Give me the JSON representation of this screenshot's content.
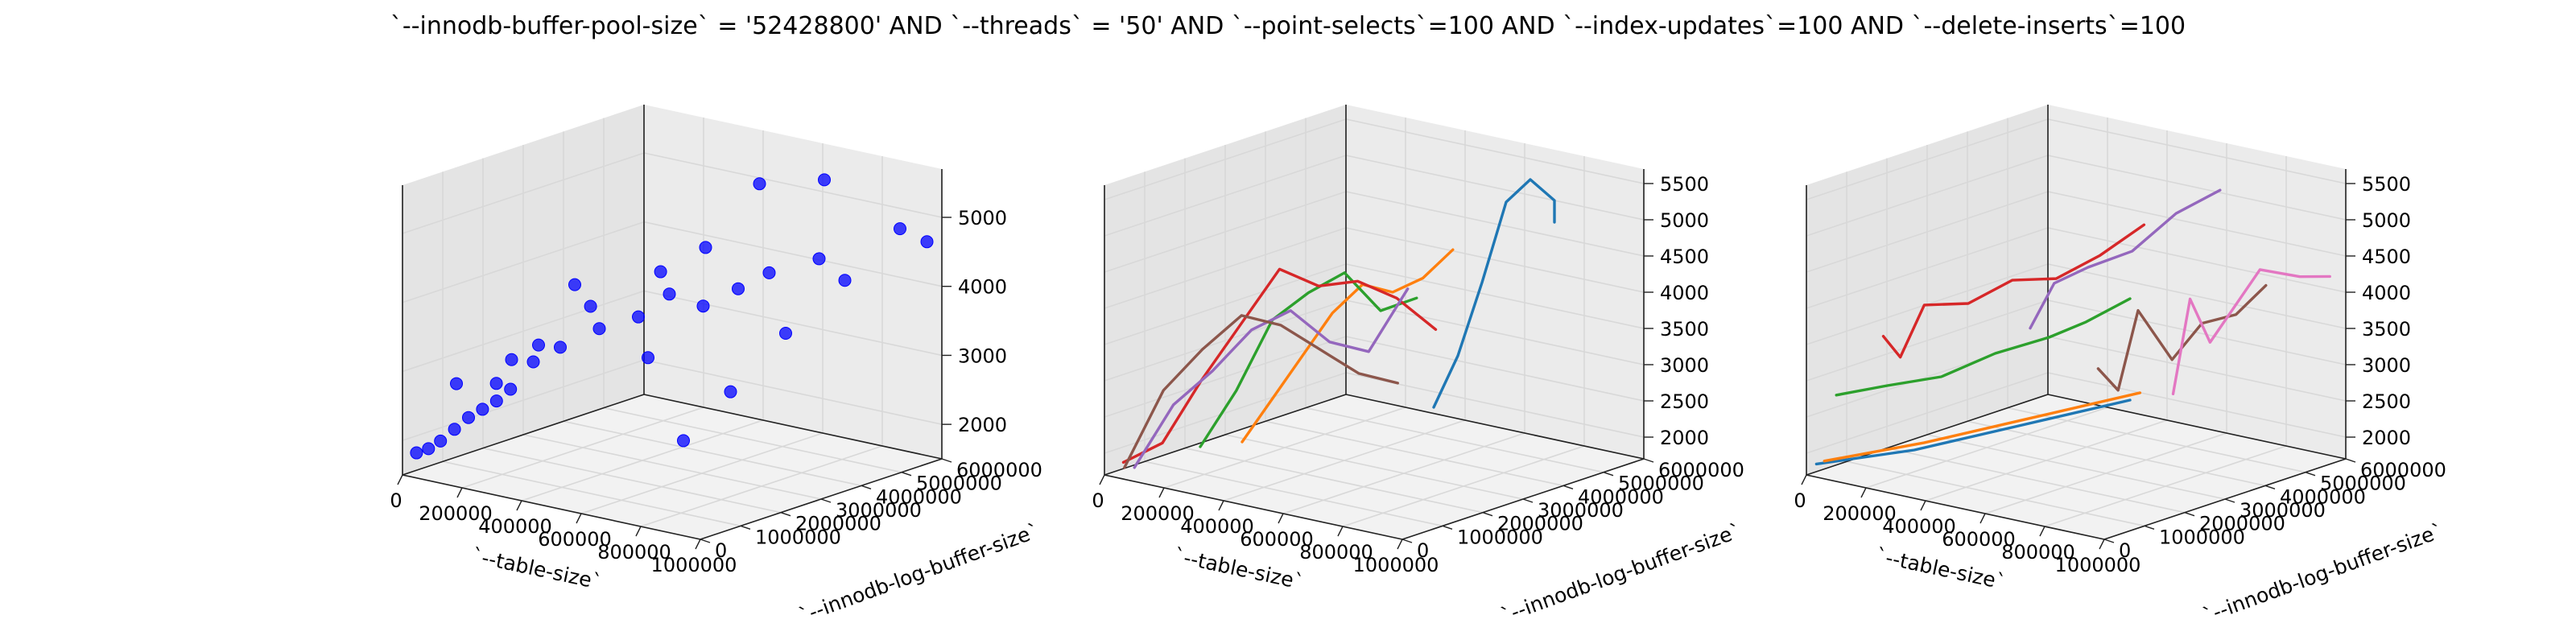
{
  "figure": {
    "title": "`--innodb-buffer-pool-size` = '52428800' AND `--threads` = '50'  AND `--point-selects`=100 AND `--index-updates`=100 AND `--delete-inserts`=100"
  },
  "chart_data": [
    {
      "type": "scatter",
      "xlabel": "`--table-size`",
      "ylabel": "`--innodb-log-buffer-size`",
      "zlabel": "",
      "xlim": [
        0,
        1000000
      ],
      "ylim": [
        0,
        6000000
      ],
      "zlim": [
        1500,
        5700
      ],
      "xticks": [
        "0",
        "200000",
        "400000",
        "600000",
        "800000",
        "1000000"
      ],
      "yticks": [
        "0",
        "1000000",
        "2000000",
        "3000000",
        "4000000",
        "5000000",
        "6000000"
      ],
      "zticks": [
        "2000",
        "3000",
        "4000",
        "5000"
      ],
      "marker_color": "#0000ff",
      "points": [
        {
          "x": 20000,
          "y": 200000,
          "z": 1800
        },
        {
          "x": 40000,
          "y": 350000,
          "z": 1850
        },
        {
          "x": 60000,
          "y": 500000,
          "z": 1950
        },
        {
          "x": 80000,
          "y": 700000,
          "z": 2100
        },
        {
          "x": 100000,
          "y": 900000,
          "z": 2250
        },
        {
          "x": 120000,
          "y": 1100000,
          "z": 2350
        },
        {
          "x": 140000,
          "y": 1300000,
          "z": 2450
        },
        {
          "x": 160000,
          "y": 1500000,
          "z": 2600
        },
        {
          "x": 100000,
          "y": 600000,
          "z": 2800
        },
        {
          "x": 180000,
          "y": 1000000,
          "z": 2800
        },
        {
          "x": 150000,
          "y": 1600000,
          "z": 3000
        },
        {
          "x": 200000,
          "y": 1900000,
          "z": 3200
        },
        {
          "x": 250000,
          "y": 1400000,
          "z": 3100
        },
        {
          "x": 300000,
          "y": 1700000,
          "z": 3300
        },
        {
          "x": 350000,
          "y": 2300000,
          "z": 3500
        },
        {
          "x": 200000,
          "y": 2800000,
          "z": 3900
        },
        {
          "x": 280000,
          "y": 2600000,
          "z": 3700
        },
        {
          "x": 400000,
          "y": 2900000,
          "z": 3600
        },
        {
          "x": 450000,
          "y": 3300000,
          "z": 3900
        },
        {
          "x": 380000,
          "y": 3600000,
          "z": 4100
        },
        {
          "x": 500000,
          "y": 2400000,
          "z": 3200
        },
        {
          "x": 550000,
          "y": 3400000,
          "z": 3800
        },
        {
          "x": 600000,
          "y": 3900000,
          "z": 4000
        },
        {
          "x": 650000,
          "y": 4300000,
          "z": 4200
        },
        {
          "x": 450000,
          "y": 4200000,
          "z": 4400
        },
        {
          "x": 700000,
          "y": 1800000,
          "z": 2300
        },
        {
          "x": 750000,
          "y": 2600000,
          "z": 2900
        },
        {
          "x": 800000,
          "y": 3600000,
          "z": 3600
        },
        {
          "x": 750000,
          "y": 4800000,
          "z": 4400
        },
        {
          "x": 850000,
          "y": 4700000,
          "z": 4200
        },
        {
          "x": 550000,
          "y": 4800000,
          "z": 5300
        },
        {
          "x": 700000,
          "y": 5300000,
          "z": 5400
        },
        {
          "x": 900000,
          "y": 5700000,
          "z": 4800
        },
        {
          "x": 950000,
          "y": 6000000,
          "z": 4600
        }
      ]
    },
    {
      "type": "line",
      "xlabel": "`--table-size`",
      "ylabel": "`--innodb-log-buffer-size`",
      "zlabel": "",
      "xlim": [
        0,
        1000000
      ],
      "ylim": [
        0,
        6000000
      ],
      "zlim": [
        1700,
        5700
      ],
      "xticks": [
        "0",
        "200000",
        "400000",
        "600000",
        "800000",
        "1000000"
      ],
      "yticks": [
        "0",
        "1000000",
        "2000000",
        "3000000",
        "4000000",
        "5000000",
        "6000000"
      ],
      "zticks": [
        "2000",
        "2500",
        "3000",
        "3500",
        "4000",
        "4500",
        "5000",
        "5500"
      ],
      "series": [
        {
          "color": "#1f77b4",
          "points": [
            [
              700000,
              3000000,
              2700
            ],
            [
              700000,
              3600000,
              3300
            ],
            [
              700000,
              4200000,
              4200
            ],
            [
              700000,
              4800000,
              5200
            ],
            [
              700000,
              5400000,
              5400
            ],
            [
              700000,
              6000000,
              5000
            ],
            [
              700000,
              6600000,
              4700
            ]
          ]
        },
        {
          "color": "#ff7f0e",
          "points": [
            [
              300000,
              1200000,
              2200
            ],
            [
              320000,
              1800000,
              2700
            ],
            [
              340000,
              2400000,
              3200
            ],
            [
              360000,
              3000000,
              3700
            ],
            [
              380000,
              3600000,
              4000
            ],
            [
              400000,
              4200000,
              3800
            ],
            [
              420000,
              4800000,
              3900
            ],
            [
              440000,
              5400000,
              4200
            ]
          ]
        },
        {
          "color": "#2ca02c",
          "points": [
            [
              200000,
              900000,
              2100
            ],
            [
              240000,
              1500000,
              2800
            ],
            [
              280000,
              2100000,
              3700
            ],
            [
              320000,
              2700000,
              4000
            ],
            [
              360000,
              3300000,
              4200
            ],
            [
              400000,
              3900000,
              3600
            ],
            [
              440000,
              4500000,
              3700
            ]
          ]
        },
        {
          "color": "#d62728",
          "points": [
            [
              50000,
              100000,
              1900
            ],
            [
              100000,
              700000,
              2100
            ],
            [
              150000,
              1300000,
              2900
            ],
            [
              200000,
              1900000,
              3600
            ],
            [
              250000,
              2500000,
              4300
            ],
            [
              300000,
              3100000,
              4000
            ],
            [
              350000,
              3700000,
              4000
            ],
            [
              400000,
              4300000,
              3700
            ],
            [
              450000,
              4900000,
              3200
            ]
          ]
        },
        {
          "color": "#9467bd",
          "points": [
            [
              60000,
              300000,
              1800
            ],
            [
              110000,
              900000,
              2600
            ],
            [
              160000,
              1500000,
              3000
            ],
            [
              210000,
              2100000,
              3500
            ],
            [
              260000,
              2700000,
              3700
            ],
            [
              310000,
              3300000,
              3200
            ],
            [
              360000,
              3900000,
              3000
            ],
            [
              410000,
              4500000,
              3800
            ]
          ]
        },
        {
          "color": "#8c564b",
          "points": [
            [
              40000,
              200000,
              1800
            ],
            [
              90000,
              800000,
              2800
            ],
            [
              140000,
              1400000,
              3300
            ],
            [
              190000,
              2000000,
              3700
            ],
            [
              240000,
              2600000,
              3500
            ],
            [
              290000,
              3200000,
              3100
            ],
            [
              340000,
              3800000,
              2700
            ],
            [
              390000,
              4400000,
              2500
            ]
          ]
        }
      ]
    },
    {
      "type": "line",
      "xlabel": "`--table-size`",
      "ylabel": "`--innodb-log-buffer-size`",
      "zlabel": "",
      "xlim": [
        0,
        1000000
      ],
      "ylim": [
        0,
        6000000
      ],
      "zlim": [
        1700,
        5700
      ],
      "xticks": [
        "0",
        "200000",
        "400000",
        "600000",
        "800000",
        "1000000"
      ],
      "yticks": [
        "0",
        "1000000",
        "2000000",
        "3000000",
        "4000000",
        "5000000",
        "6000000"
      ],
      "zticks": [
        "2000",
        "2500",
        "3000",
        "3500",
        "4000",
        "4500",
        "5000",
        "5500"
      ],
      "series": [
        {
          "color": "#1f77b4",
          "points": [
            [
              20000,
              100000,
              1850
            ],
            [
              200000,
              1200000,
              2000
            ],
            [
              400000,
              2400000,
              2300
            ],
            [
              600000,
              3600000,
              2600
            ]
          ]
        },
        {
          "color": "#ff7f0e",
          "points": [
            [
              40000,
              150000,
              1900
            ],
            [
              220000,
              1300000,
              2100
            ],
            [
              420000,
              2500000,
              2400
            ],
            [
              620000,
              3700000,
              2700
            ]
          ]
        },
        {
          "color": "#2ca02c",
          "points": [
            [
              60000,
              300000,
              2800
            ],
            [
              150000,
              900000,
              2900
            ],
            [
              250000,
              1500000,
              3000
            ],
            [
              350000,
              2100000,
              3300
            ],
            [
              450000,
              2700000,
              3500
            ],
            [
              520000,
              3100000,
              3700
            ],
            [
              600000,
              3600000,
              4000
            ]
          ]
        },
        {
          "color": "#d62728",
          "points": [
            [
              150000,
              800000,
              3600
            ],
            [
              180000,
              1000000,
              3300
            ],
            [
              220000,
              1300000,
              4000
            ],
            [
              300000,
              1800000,
              4000
            ],
            [
              380000,
              2300000,
              4300
            ],
            [
              460000,
              2800000,
              4300
            ],
            [
              540000,
              3300000,
              4600
            ],
            [
              620000,
              3800000,
              5000
            ]
          ]
        },
        {
          "color": "#9467bd",
          "points": [
            [
              400000,
              2600000,
              3600
            ],
            [
              440000,
              2900000,
              4200
            ],
            [
              500000,
              3300000,
              4400
            ],
            [
              580000,
              3800000,
              4600
            ],
            [
              660000,
              4300000,
              5100
            ],
            [
              740000,
              4800000,
              5400
            ]
          ]
        },
        {
          "color": "#8c564b",
          "points": [
            [
              520000,
              3400000,
              3000
            ],
            [
              560000,
              3600000,
              2700
            ],
            [
              600000,
              3800000,
              3800
            ],
            [
              660000,
              4200000,
              3100
            ],
            [
              720000,
              4500000,
              3600
            ],
            [
              780000,
              4900000,
              3700
            ],
            [
              840000,
              5200000,
              4100
            ]
          ]
        },
        {
          "color": "#e377c2",
          "points": [
            [
              650000,
              4300000,
              2600
            ],
            [
              680000,
              4500000,
              3900
            ],
            [
              720000,
              4700000,
              3300
            ],
            [
              780000,
              5000000,
              3900
            ],
            [
              820000,
              5200000,
              4300
            ],
            [
              900000,
              5600000,
              4200
            ],
            [
              960000,
              5900000,
              4200
            ]
          ]
        }
      ]
    }
  ]
}
